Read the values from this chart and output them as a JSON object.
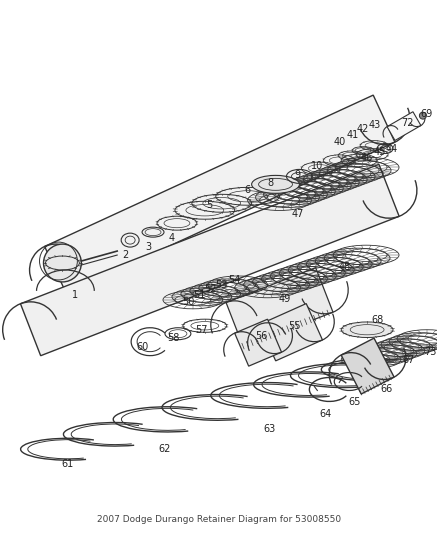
{
  "title": "2007 Dodge Durango Retainer Diagram for 53008550",
  "bg_color": "#ffffff",
  "fig_width": 4.38,
  "fig_height": 5.33,
  "dpi": 100,
  "line_color": "#333333",
  "label_color": "#222222",
  "label_fontsize": 7.0
}
